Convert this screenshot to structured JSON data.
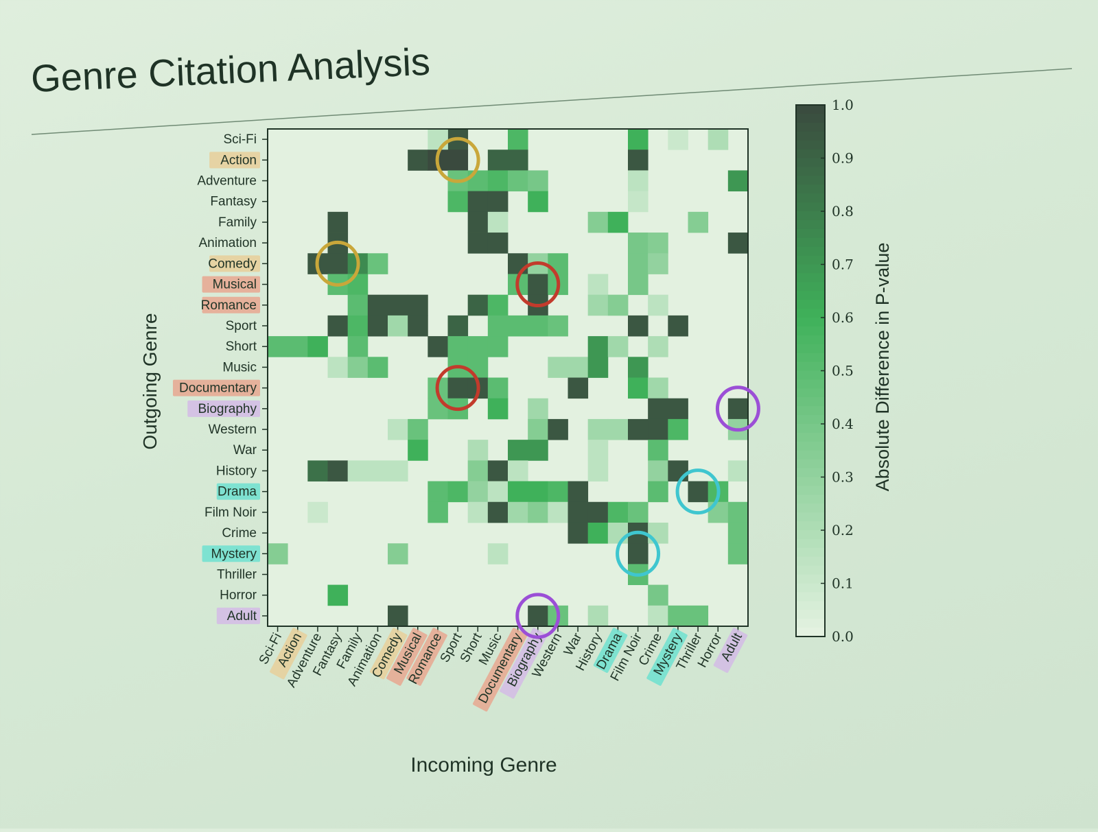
{
  "slide": {
    "title": "Genre Citation Analysis",
    "background": "#d9ebd7",
    "title_color": "#1f3326"
  },
  "chart_data": {
    "type": "heatmap",
    "xlabel": "Incoming Genre",
    "ylabel": "Outgoing Genre",
    "colorbar_label": "Absolute Difference in P-value",
    "colorbar_ticks": [
      "0.0",
      "0.1",
      "0.2",
      "0.3",
      "0.4",
      "0.5",
      "0.6",
      "0.7",
      "0.8",
      "0.9",
      "1.0"
    ],
    "value_range": [
      0,
      1
    ],
    "colormap": {
      "low": "#e6f3e3",
      "mid": "#3fb15a",
      "high": "#3a4a3e"
    },
    "genres": [
      "Sci-Fi",
      "Action",
      "Adventure",
      "Fantasy",
      "Family",
      "Animation",
      "Comedy",
      "Musical",
      "Romance",
      "Sport",
      "Short",
      "Music",
      "Documentary",
      "Biography",
      "Western",
      "War",
      "History",
      "Drama",
      "Film Noir",
      "Crime",
      "Mystery",
      "Thriller",
      "Horror",
      "Adult"
    ],
    "label_highlights": {
      "Action": "#e7cf9a",
      "Comedy": "#e7cf9a",
      "Musical": "#e8a791",
      "Romance": "#e8a791",
      "Documentary": "#e8a791",
      "Biography": "#d4bbe6",
      "Drama": "#6fe0d0",
      "Mystery": "#6fe0d0",
      "Adult": "#d4bbe6"
    },
    "cells": [
      {
        "row": "Sci-Fi",
        "col": "Sport",
        "value": 0.95
      },
      {
        "row": "Sci-Fi",
        "col": "Romance",
        "value": 0.15
      },
      {
        "row": "Sci-Fi",
        "col": "Documentary",
        "value": 0.55
      },
      {
        "row": "Sci-Fi",
        "col": "Film Noir",
        "value": 0.6
      },
      {
        "row": "Sci-Fi",
        "col": "Mystery",
        "value": 0.1
      },
      {
        "row": "Sci-Fi",
        "col": "Horror",
        "value": 0.2
      },
      {
        "row": "Action",
        "col": "Musical",
        "value": 0.95
      },
      {
        "row": "Action",
        "col": "Romance",
        "value": 1.0
      },
      {
        "row": "Action",
        "col": "Sport",
        "value": 1.0
      },
      {
        "row": "Action",
        "col": "Music",
        "value": 0.9
      },
      {
        "row": "Action",
        "col": "Documentary",
        "value": 0.9
      },
      {
        "row": "Action",
        "col": "Film Noir",
        "value": 0.95
      },
      {
        "row": "Adventure",
        "col": "Sport",
        "value": 0.45
      },
      {
        "row": "Adventure",
        "col": "Short",
        "value": 0.5
      },
      {
        "row": "Adventure",
        "col": "Music",
        "value": 0.55
      },
      {
        "row": "Adventure",
        "col": "Documentary",
        "value": 0.45
      },
      {
        "row": "Adventure",
        "col": "Biography",
        "value": 0.4
      },
      {
        "row": "Adventure",
        "col": "Film Noir",
        "value": 0.15
      },
      {
        "row": "Adventure",
        "col": "Adult",
        "value": 0.7
      },
      {
        "row": "Fantasy",
        "col": "Sport",
        "value": 0.55
      },
      {
        "row": "Fantasy",
        "col": "Short",
        "value": 0.95
      },
      {
        "row": "Fantasy",
        "col": "Music",
        "value": 0.95
      },
      {
        "row": "Fantasy",
        "col": "Biography",
        "value": 0.6
      },
      {
        "row": "Fantasy",
        "col": "Film Noir",
        "value": 0.12
      },
      {
        "row": "Family",
        "col": "Fantasy",
        "value": 0.95
      },
      {
        "row": "Family",
        "col": "Short",
        "value": 0.95
      },
      {
        "row": "Family",
        "col": "Music",
        "value": 0.15
      },
      {
        "row": "Family",
        "col": "History",
        "value": 0.35
      },
      {
        "row": "Family",
        "col": "Drama",
        "value": 0.6
      },
      {
        "row": "Family",
        "col": "Thriller",
        "value": 0.35
      },
      {
        "row": "Animation",
        "col": "Fantasy",
        "value": 0.95
      },
      {
        "row": "Animation",
        "col": "Short",
        "value": 0.95
      },
      {
        "row": "Animation",
        "col": "Music",
        "value": 0.95
      },
      {
        "row": "Animation",
        "col": "Film Noir",
        "value": 0.4
      },
      {
        "row": "Animation",
        "col": "Crime",
        "value": 0.35
      },
      {
        "row": "Animation",
        "col": "Adult",
        "value": 0.95
      },
      {
        "row": "Comedy",
        "col": "Adventure",
        "value": 0.95
      },
      {
        "row": "Comedy",
        "col": "Fantasy",
        "value": 0.95
      },
      {
        "row": "Comedy",
        "col": "Family",
        "value": 0.75
      },
      {
        "row": "Comedy",
        "col": "Animation",
        "value": 0.45
      },
      {
        "row": "Comedy",
        "col": "Documentary",
        "value": 0.95
      },
      {
        "row": "Comedy",
        "col": "Biography",
        "value": 0.3
      },
      {
        "row": "Comedy",
        "col": "Western",
        "value": 0.5
      },
      {
        "row": "Comedy",
        "col": "Film Noir",
        "value": 0.4
      },
      {
        "row": "Comedy",
        "col": "Crime",
        "value": 0.3
      },
      {
        "row": "Musical",
        "col": "Fantasy",
        "value": 0.5
      },
      {
        "row": "Musical",
        "col": "Family",
        "value": 0.55
      },
      {
        "row": "Musical",
        "col": "Documentary",
        "value": 0.5
      },
      {
        "row": "Musical",
        "col": "Biography",
        "value": 0.95
      },
      {
        "row": "Musical",
        "col": "Western",
        "value": 0.5
      },
      {
        "row": "Musical",
        "col": "History",
        "value": 0.15
      },
      {
        "row": "Musical",
        "col": "Film Noir",
        "value": 0.4
      },
      {
        "row": "Romance",
        "col": "Family",
        "value": 0.5
      },
      {
        "row": "Romance",
        "col": "Animation",
        "value": 0.95
      },
      {
        "row": "Romance",
        "col": "Comedy",
        "value": 0.95
      },
      {
        "row": "Romance",
        "col": "Musical",
        "value": 0.95
      },
      {
        "row": "Romance",
        "col": "Short",
        "value": 0.9
      },
      {
        "row": "Romance",
        "col": "Music",
        "value": 0.55
      },
      {
        "row": "Romance",
        "col": "Biography",
        "value": 0.95
      },
      {
        "row": "Romance",
        "col": "History",
        "value": 0.25
      },
      {
        "row": "Romance",
        "col": "Drama",
        "value": 0.35
      },
      {
        "row": "Romance",
        "col": "Crime",
        "value": 0.15
      },
      {
        "row": "Sport",
        "col": "Fantasy",
        "value": 0.95
      },
      {
        "row": "Sport",
        "col": "Family",
        "value": 0.55
      },
      {
        "row": "Sport",
        "col": "Animation",
        "value": 0.95
      },
      {
        "row": "Sport",
        "col": "Comedy",
        "value": 0.25
      },
      {
        "row": "Sport",
        "col": "Musical",
        "value": 0.95
      },
      {
        "row": "Sport",
        "col": "Sport",
        "value": 0.9
      },
      {
        "row": "Sport",
        "col": "Music",
        "value": 0.5
      },
      {
        "row": "Sport",
        "col": "Documentary",
        "value": 0.5
      },
      {
        "row": "Sport",
        "col": "Biography",
        "value": 0.5
      },
      {
        "row": "Sport",
        "col": "Western",
        "value": 0.45
      },
      {
        "row": "Sport",
        "col": "Film Noir",
        "value": 0.95
      },
      {
        "row": "Sport",
        "col": "Mystery",
        "value": 0.95
      },
      {
        "row": "Short",
        "col": "Sci-Fi",
        "value": 0.5
      },
      {
        "row": "Short",
        "col": "Action",
        "value": 0.5
      },
      {
        "row": "Short",
        "col": "Adventure",
        "value": 0.6
      },
      {
        "row": "Short",
        "col": "Family",
        "value": 0.5
      },
      {
        "row": "Short",
        "col": "Romance",
        "value": 0.95
      },
      {
        "row": "Short",
        "col": "Sport",
        "value": 0.5
      },
      {
        "row": "Short",
        "col": "Short",
        "value": 0.5
      },
      {
        "row": "Short",
        "col": "Music",
        "value": 0.5
      },
      {
        "row": "Short",
        "col": "History",
        "value": 0.7
      },
      {
        "row": "Short",
        "col": "Drama",
        "value": 0.25
      },
      {
        "row": "Short",
        "col": "Crime",
        "value": 0.2
      },
      {
        "row": "Music",
        "col": "Fantasy",
        "value": 0.15
      },
      {
        "row": "Music",
        "col": "Family",
        "value": 0.35
      },
      {
        "row": "Music",
        "col": "Animation",
        "value": 0.5
      },
      {
        "row": "Music",
        "col": "Sport",
        "value": 0.5
      },
      {
        "row": "Music",
        "col": "Short",
        "value": 0.5
      },
      {
        "row": "Music",
        "col": "Western",
        "value": 0.25
      },
      {
        "row": "Music",
        "col": "War",
        "value": 0.25
      },
      {
        "row": "Music",
        "col": "History",
        "value": 0.7
      },
      {
        "row": "Music",
        "col": "Film Noir",
        "value": 0.7
      },
      {
        "row": "Documentary",
        "col": "Romance",
        "value": 0.45
      },
      {
        "row": "Documentary",
        "col": "Sport",
        "value": 0.95
      },
      {
        "row": "Documentary",
        "col": "Short",
        "value": 0.95
      },
      {
        "row": "Documentary",
        "col": "Music",
        "value": 0.5
      },
      {
        "row": "Documentary",
        "col": "War",
        "value": 0.95
      },
      {
        "row": "Documentary",
        "col": "Film Noir",
        "value": 0.6
      },
      {
        "row": "Documentary",
        "col": "Crime",
        "value": 0.25
      },
      {
        "row": "Biography",
        "col": "Romance",
        "value": 0.45
      },
      {
        "row": "Biography",
        "col": "Sport",
        "value": 0.5
      },
      {
        "row": "Biography",
        "col": "Music",
        "value": 0.6
      },
      {
        "row": "Biography",
        "col": "Biography",
        "value": 0.25
      },
      {
        "row": "Biography",
        "col": "Crime",
        "value": 0.95
      },
      {
        "row": "Biography",
        "col": "Mystery",
        "value": 0.95
      },
      {
        "row": "Biography",
        "col": "Adult",
        "value": 0.95
      },
      {
        "row": "Western",
        "col": "Comedy",
        "value": 0.15
      },
      {
        "row": "Western",
        "col": "Musical",
        "value": 0.45
      },
      {
        "row": "Western",
        "col": "Biography",
        "value": 0.35
      },
      {
        "row": "Western",
        "col": "Western",
        "value": 0.95
      },
      {
        "row": "Western",
        "col": "History",
        "value": 0.25
      },
      {
        "row": "Western",
        "col": "Drama",
        "value": 0.25
      },
      {
        "row": "Western",
        "col": "Film Noir",
        "value": 0.95
      },
      {
        "row": "Western",
        "col": "Crime",
        "value": 0.95
      },
      {
        "row": "Western",
        "col": "Mystery",
        "value": 0.55
      },
      {
        "row": "Western",
        "col": "Adult",
        "value": 0.3
      },
      {
        "row": "War",
        "col": "Musical",
        "value": 0.6
      },
      {
        "row": "War",
        "col": "Short",
        "value": 0.2
      },
      {
        "row": "War",
        "col": "Documentary",
        "value": 0.7
      },
      {
        "row": "War",
        "col": "Biography",
        "value": 0.7
      },
      {
        "row": "War",
        "col": "History",
        "value": 0.15
      },
      {
        "row": "War",
        "col": "Crime",
        "value": 0.5
      },
      {
        "row": "History",
        "col": "Adventure",
        "value": 0.85
      },
      {
        "row": "History",
        "col": "Fantasy",
        "value": 0.95
      },
      {
        "row": "History",
        "col": "Family",
        "value": 0.15
      },
      {
        "row": "History",
        "col": "Animation",
        "value": 0.15
      },
      {
        "row": "History",
        "col": "Comedy",
        "value": 0.15
      },
      {
        "row": "History",
        "col": "Short",
        "value": 0.35
      },
      {
        "row": "History",
        "col": "Music",
        "value": 0.95
      },
      {
        "row": "History",
        "col": "Documentary",
        "value": 0.15
      },
      {
        "row": "History",
        "col": "History",
        "value": 0.15
      },
      {
        "row": "History",
        "col": "Crime",
        "value": 0.3
      },
      {
        "row": "History",
        "col": "Mystery",
        "value": 0.95
      },
      {
        "row": "History",
        "col": "Adult",
        "value": 0.15
      },
      {
        "row": "Drama",
        "col": "Romance",
        "value": 0.5
      },
      {
        "row": "Drama",
        "col": "Sport",
        "value": 0.55
      },
      {
        "row": "Drama",
        "col": "Short",
        "value": 0.3
      },
      {
        "row": "Drama",
        "col": "Music",
        "value": 0.15
      },
      {
        "row": "Drama",
        "col": "Documentary",
        "value": 0.6
      },
      {
        "row": "Drama",
        "col": "Biography",
        "value": 0.6
      },
      {
        "row": "Drama",
        "col": "Western",
        "value": 0.55
      },
      {
        "row": "Drama",
        "col": "War",
        "value": 0.95
      },
      {
        "row": "Drama",
        "col": "Crime",
        "value": 0.5
      },
      {
        "row": "Drama",
        "col": "Thriller",
        "value": 0.95
      },
      {
        "row": "Drama",
        "col": "Horror",
        "value": 0.55
      },
      {
        "row": "Film Noir",
        "col": "Adventure",
        "value": 0.1
      },
      {
        "row": "Film Noir",
        "col": "Romance",
        "value": 0.5
      },
      {
        "row": "Film Noir",
        "col": "Short",
        "value": 0.15
      },
      {
        "row": "Film Noir",
        "col": "Music",
        "value": 0.95
      },
      {
        "row": "Film Noir",
        "col": "Documentary",
        "value": 0.25
      },
      {
        "row": "Film Noir",
        "col": "Biography",
        "value": 0.35
      },
      {
        "row": "Film Noir",
        "col": "Western",
        "value": 0.15
      },
      {
        "row": "Film Noir",
        "col": "War",
        "value": 0.95
      },
      {
        "row": "Film Noir",
        "col": "History",
        "value": 0.95
      },
      {
        "row": "Film Noir",
        "col": "Drama",
        "value": 0.55
      },
      {
        "row": "Film Noir",
        "col": "Film Noir",
        "value": 0.45
      },
      {
        "row": "Film Noir",
        "col": "Horror",
        "value": 0.35
      },
      {
        "row": "Film Noir",
        "col": "Adult",
        "value": 0.45
      },
      {
        "row": "Crime",
        "col": "War",
        "value": 0.95
      },
      {
        "row": "Crime",
        "col": "History",
        "value": 0.6
      },
      {
        "row": "Crime",
        "col": "Drama",
        "value": 0.2
      },
      {
        "row": "Crime",
        "col": "Film Noir",
        "value": 0.95
      },
      {
        "row": "Crime",
        "col": "Crime",
        "value": 0.2
      },
      {
        "row": "Crime",
        "col": "Adult",
        "value": 0.45
      },
      {
        "row": "Mystery",
        "col": "Sci-Fi",
        "value": 0.35
      },
      {
        "row": "Mystery",
        "col": "Comedy",
        "value": 0.35
      },
      {
        "row": "Mystery",
        "col": "Music",
        "value": 0.15
      },
      {
        "row": "Mystery",
        "col": "Film Noir",
        "value": 0.95
      },
      {
        "row": "Mystery",
        "col": "Adult",
        "value": 0.45
      },
      {
        "row": "Thriller",
        "col": "Film Noir",
        "value": 0.5
      },
      {
        "row": "Horror",
        "col": "Fantasy",
        "value": 0.6
      },
      {
        "row": "Horror",
        "col": "Crime",
        "value": 0.4
      },
      {
        "row": "Adult",
        "col": "Comedy",
        "value": 0.95
      },
      {
        "row": "Adult",
        "col": "Biography",
        "value": 0.95
      },
      {
        "row": "Adult",
        "col": "Western",
        "value": 0.45
      },
      {
        "row": "Adult",
        "col": "History",
        "value": 0.2
      },
      {
        "row": "Adult",
        "col": "Crime",
        "value": 0.15
      },
      {
        "row": "Adult",
        "col": "Mystery",
        "value": 0.45
      },
      {
        "row": "Adult",
        "col": "Thriller",
        "value": 0.45
      }
    ],
    "highlight_circles": [
      {
        "row": "Action",
        "col": "Sport",
        "color": "#c9a73a"
      },
      {
        "row": "Comedy",
        "col": "Fantasy",
        "color": "#c9a73a"
      },
      {
        "row": "Musical",
        "col": "Biography",
        "color": "#c23b2c"
      },
      {
        "row": "Documentary",
        "col": "Sport",
        "color": "#c23b2c"
      },
      {
        "row": "Biography",
        "col": "Adult",
        "color": "#9b4fd6"
      },
      {
        "row": "Adult",
        "col": "Biography",
        "color": "#9b4fd6"
      },
      {
        "row": "Drama",
        "col": "Thriller",
        "color": "#3fc6cf"
      },
      {
        "row": "Mystery",
        "col": "Film Noir",
        "color": "#3fc6cf"
      }
    ]
  }
}
